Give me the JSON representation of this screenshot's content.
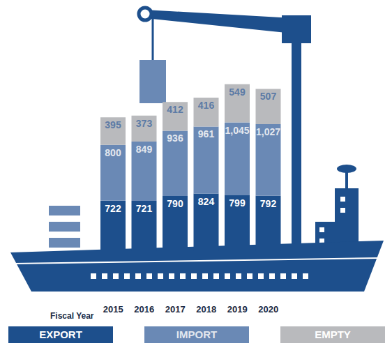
{
  "chart_data": {
    "type": "bar",
    "stacked": true,
    "data_labels": true,
    "x_label": "Fiscal Year",
    "categories": [
      "2015",
      "2016",
      "2017",
      "2018",
      "2019",
      "2020"
    ],
    "series": [
      {
        "name": "EXPORT",
        "color": "#1d4f8c",
        "values": [
          722,
          721,
          790,
          824,
          799,
          792
        ]
      },
      {
        "name": "IMPORT",
        "color": "#6a89b5",
        "values": [
          800,
          849,
          936,
          961,
          1045,
          1027
        ],
        "value_labels": [
          "800",
          "849",
          "936",
          "961",
          "1,045",
          "1,027"
        ]
      },
      {
        "name": "EMPTY",
        "color": "#b9babd",
        "values": [
          395,
          373,
          412,
          416,
          549,
          507
        ]
      }
    ],
    "ylim": [
      0,
      2500
    ],
    "tick_labels": "x",
    "legend": "bottom"
  }
}
